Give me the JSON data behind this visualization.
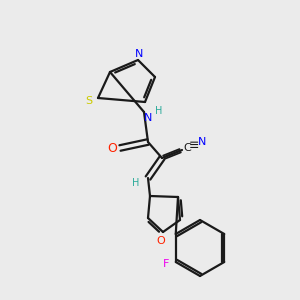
{
  "background_color": "#ebebeb",
  "bond_color": "#1a1a1a",
  "atom_colors": {
    "N": "#0000ff",
    "O": "#ff2200",
    "S": "#cccc00",
    "F": "#ee00ee",
    "C": "#1a1a1a",
    "H": "#2aaa99"
  },
  "figsize": [
    3.0,
    3.0
  ],
  "dpi": 100
}
